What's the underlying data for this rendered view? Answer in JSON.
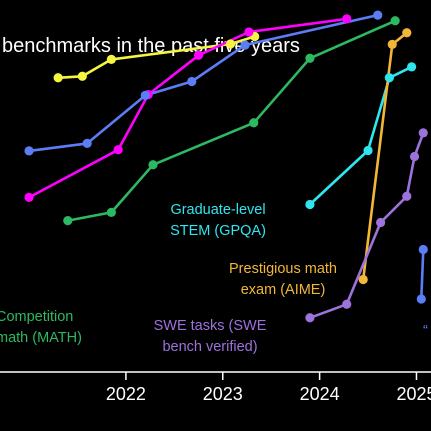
{
  "chart_data": {
    "type": "line",
    "title": "benchmarks in the past five years",
    "x_ticks": [
      "2022",
      "2023",
      "2024",
      "2025"
    ],
    "x_range": [
      2020.7,
      2025.15
    ],
    "y_range": [
      0,
      100
    ],
    "grid": false,
    "series": [
      {
        "name": "",
        "color": "#f5f542",
        "points": [
          [
            2021.3,
            80.6
          ],
          [
            2021.55,
            81
          ],
          [
            2021.85,
            85.5
          ],
          [
            2023.08,
            89.6
          ],
          [
            2023.33,
            91.6
          ]
        ]
      },
      {
        "name": "",
        "color": "#ff00ff",
        "points": [
          [
            2021.0,
            48.7
          ],
          [
            2021.92,
            61.4
          ],
          [
            2022.23,
            76.1
          ],
          [
            2022.75,
            86.6
          ],
          [
            2023.27,
            92.8
          ],
          [
            2024.28,
            96.3
          ]
        ]
      },
      {
        "name": "",
        "color": "#5b7df5",
        "points": [
          [
            2021.0,
            61.1
          ],
          [
            2021.6,
            63.1
          ],
          [
            2022.2,
            75.9
          ],
          [
            2022.68,
            79.6
          ],
          [
            2023.23,
            89.3
          ],
          [
            2024.6,
            97.3
          ]
        ]
      },
      {
        "name": "",
        "color": "#2db862",
        "points": [
          [
            2021.4,
            42.5
          ],
          [
            2021.85,
            44.7
          ],
          [
            2022.28,
            57.4
          ],
          [
            2023.32,
            68.6
          ],
          [
            2023.9,
            85.8
          ],
          [
            2024.78,
            95.8
          ]
        ]
      },
      {
        "name": "Competition math (MATH)",
        "color": "#2db862",
        "label": [
          "Competition",
          "math (MATH)"
        ],
        "points": []
      },
      {
        "name": "Graduate-level STEM (GPQA)",
        "color": "#2ee6f0",
        "label": [
          "Graduate-level",
          "STEM (GPQA)"
        ],
        "points": [
          [
            2023.9,
            46.8
          ],
          [
            2024.5,
            61.2
          ],
          [
            2024.72,
            80.6
          ],
          [
            2024.95,
            83.5
          ]
        ]
      },
      {
        "name": "Prestigious math exam (AIME)",
        "color": "#f2b736",
        "label": [
          "Prestigious math",
          "exam (AIME)"
        ],
        "points": [
          [
            2024.45,
            26.8
          ],
          [
            2024.75,
            89.5
          ],
          [
            2024.9,
            92.6
          ]
        ]
      },
      {
        "name": "SWE tasks (SWE bench verified)",
        "color": "#9b73db",
        "label": [
          "SWE tasks (SWE",
          "bench verified)"
        ],
        "points": [
          [
            2023.9,
            16.6
          ],
          [
            2024.28,
            20.2
          ],
          [
            2024.63,
            42.0
          ],
          [
            2024.9,
            49.0
          ],
          [
            2024.98,
            59.6
          ],
          [
            2025.07,
            65.9
          ]
        ]
      },
      {
        "name": "",
        "color": "#5b7df5",
        "points": [
          [
            2025.05,
            21.6
          ],
          [
            2025.07,
            34.8
          ]
        ]
      }
    ],
    "annotations": [
      "“"
    ]
  }
}
